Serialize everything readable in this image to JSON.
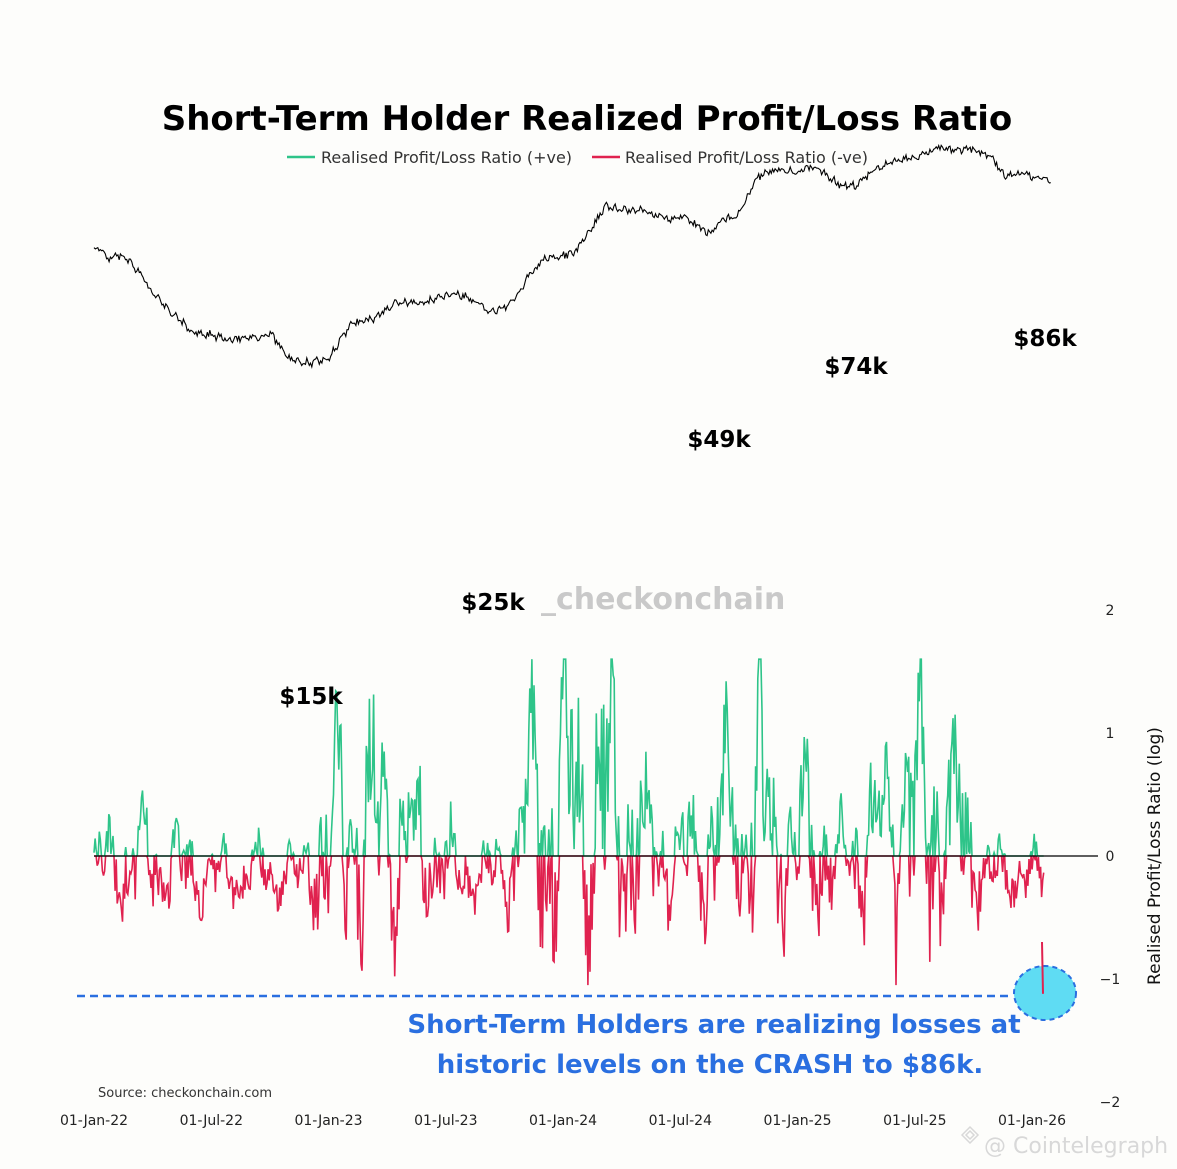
{
  "chart_data": {
    "type": "line",
    "title": "Short-Term Holder Realized Profit/Loss Ratio",
    "ylabel": "Realised Profit/Loss Ratio (log)",
    "ylim": [
      -2,
      2
    ],
    "y_ticks": [
      "2",
      "1",
      "0",
      "−1",
      "−2"
    ],
    "x_ticks": [
      "01-Jan-22",
      "01-Jul-22",
      "01-Jan-23",
      "01-Jul-23",
      "01-Jan-24",
      "01-Jul-24",
      "01-Jan-25",
      "01-Jul-25",
      "01-Jan-26"
    ],
    "legend": [
      {
        "name": "Realised Profit/Loss Ratio (+ve)",
        "color": "#2ec489"
      },
      {
        "name": "Realised Profit/Loss Ratio (-ve)",
        "color": "#e0224f"
      }
    ],
    "price_series": {
      "color": "#000000",
      "anchors": [
        {
          "t": 0.0,
          "p": 47000
        },
        {
          "t": 0.06,
          "p": 42000
        },
        {
          "t": 0.12,
          "p": 43000
        },
        {
          "t": 0.18,
          "p": 38000
        },
        {
          "t": 0.25,
          "p": 30000
        },
        {
          "t": 0.42,
          "p": 21000
        },
        {
          "t": 0.5,
          "p": 20500
        },
        {
          "t": 0.58,
          "p": 19500
        },
        {
          "t": 0.66,
          "p": 20000
        },
        {
          "t": 0.76,
          "p": 20500
        },
        {
          "t": 0.83,
          "p": 16500
        },
        {
          "t": 0.92,
          "p": 15800
        },
        {
          "t": 1.0,
          "p": 16600
        },
        {
          "t": 1.1,
          "p": 23000
        },
        {
          "t": 1.2,
          "p": 24000
        },
        {
          "t": 1.3,
          "p": 28000
        },
        {
          "t": 1.4,
          "p": 27500
        },
        {
          "t": 1.5,
          "p": 30000
        },
        {
          "t": 1.58,
          "p": 29500
        },
        {
          "t": 1.67,
          "p": 26000
        },
        {
          "t": 1.72,
          "p": 25800
        },
        {
          "t": 1.78,
          "p": 27500
        },
        {
          "t": 1.85,
          "p": 35000
        },
        {
          "t": 1.92,
          "p": 42000
        },
        {
          "t": 2.0,
          "p": 43000
        },
        {
          "t": 2.05,
          "p": 44000
        },
        {
          "t": 2.1,
          "p": 52000
        },
        {
          "t": 2.18,
          "p": 68000
        },
        {
          "t": 2.27,
          "p": 66000
        },
        {
          "t": 2.35,
          "p": 65000
        },
        {
          "t": 2.45,
          "p": 60000
        },
        {
          "t": 2.5,
          "p": 62000
        },
        {
          "t": 2.58,
          "p": 56000
        },
        {
          "t": 2.63,
          "p": 53000
        },
        {
          "t": 2.68,
          "p": 60000
        },
        {
          "t": 2.75,
          "p": 63000
        },
        {
          "t": 2.83,
          "p": 90000
        },
        {
          "t": 2.92,
          "p": 97000
        },
        {
          "t": 3.0,
          "p": 95000
        },
        {
          "t": 3.08,
          "p": 98000
        },
        {
          "t": 3.17,
          "p": 84000
        },
        {
          "t": 3.25,
          "p": 82000
        },
        {
          "t": 3.33,
          "p": 95000
        },
        {
          "t": 3.42,
          "p": 105000
        },
        {
          "t": 3.5,
          "p": 108000
        },
        {
          "t": 3.6,
          "p": 117000
        },
        {
          "t": 3.67,
          "p": 115000
        },
        {
          "t": 3.75,
          "p": 116000
        },
        {
          "t": 3.83,
          "p": 108000
        },
        {
          "t": 3.88,
          "p": 91000
        },
        {
          "t": 3.95,
          "p": 92000
        },
        {
          "t": 3.99,
          "p": 90000
        },
        {
          "t": 4.05,
          "p": 87000
        },
        {
          "t": 4.08,
          "p": 86000
        }
      ]
    },
    "price_labels": [
      "$15k",
      "$25k",
      "$49k",
      "$74k",
      "$86k"
    ],
    "latest_ratio": -1.12
  },
  "watermark": "_checkonchain",
  "annotation": {
    "line1": "Short-Term Holders are realizing losses at",
    "line2": "historic levels on the CRASH to $86k."
  },
  "source": "Source: checkonchain.com",
  "credit": "@ Cointelegraph"
}
